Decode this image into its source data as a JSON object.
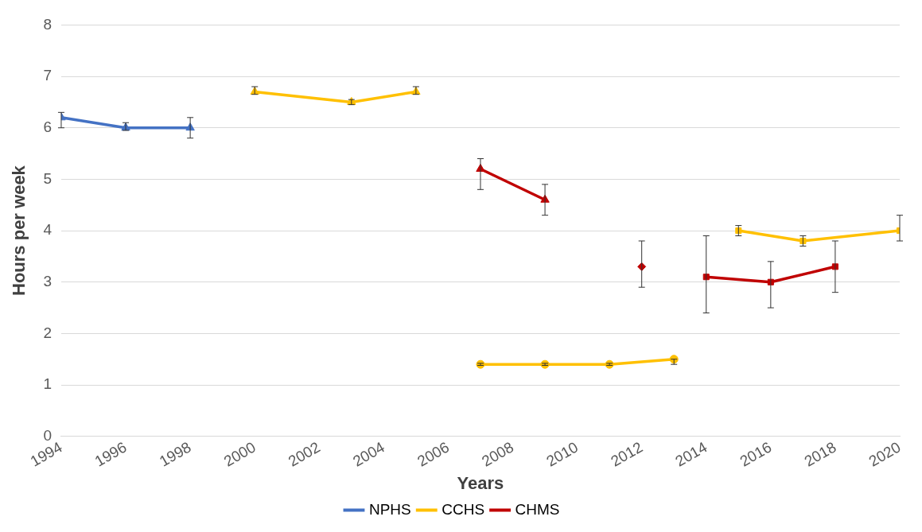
{
  "chart_data": {
    "type": "line",
    "xlabel": "Years",
    "ylabel": "Hours per week",
    "xlim": [
      1994,
      2020
    ],
    "xticks": [
      1994,
      1996,
      1998,
      2000,
      2002,
      2004,
      2006,
      2008,
      2010,
      2012,
      2014,
      2016,
      2018,
      2020
    ],
    "ylim": [
      0,
      8
    ],
    "yticks": [
      0,
      1,
      2,
      3,
      4,
      5,
      6,
      7,
      8
    ],
    "grid": "y",
    "legend": "bottom",
    "series": [
      {
        "name": "NPHS",
        "color": "#4472c4",
        "marker": "triangle",
        "x": [
          1994,
          1996,
          1998
        ],
        "values": [
          6.2,
          6.0,
          6.0
        ],
        "errors": [
          [
            6.0,
            6.3
          ],
          [
            5.95,
            6.1
          ],
          [
            5.8,
            6.2
          ]
        ]
      },
      {
        "name": "CCHS",
        "color": "#ffc000",
        "marker": "triangle",
        "x": [
          2000,
          2003,
          2005
        ],
        "values": [
          6.7,
          6.5,
          6.7
        ],
        "errors": [
          [
            6.65,
            6.8
          ],
          [
            6.45,
            6.55
          ],
          [
            6.65,
            6.8
          ]
        ]
      },
      {
        "name": "CHMS",
        "color": "#c00000",
        "marker": "triangle",
        "x": [
          2007,
          2009
        ],
        "values": [
          5.2,
          4.6
        ],
        "errors": [
          [
            4.8,
            5.4
          ],
          [
            4.3,
            4.9
          ]
        ]
      },
      {
        "color": "#c00000",
        "marker": "diamond",
        "x": [
          2012
        ],
        "values": [
          3.3
        ],
        "errors": [
          [
            2.9,
            3.8
          ]
        ]
      },
      {
        "color": "#ffc000",
        "marker": "circle",
        "x": [
          2007,
          2009,
          2011,
          2013
        ],
        "values": [
          1.4,
          1.4,
          1.4,
          1.5
        ],
        "errors": [
          [
            1.38,
            1.42
          ],
          [
            1.38,
            1.42
          ],
          [
            1.38,
            1.42
          ],
          [
            1.4,
            1.5
          ]
        ]
      },
      {
        "color": "#ffc000",
        "marker": "square",
        "x": [
          2015,
          2017,
          2020
        ],
        "values": [
          4.0,
          3.8,
          4.0
        ],
        "errors": [
          [
            3.9,
            4.1
          ],
          [
            3.7,
            3.9
          ],
          [
            3.8,
            4.3
          ]
        ]
      },
      {
        "color": "#c00000",
        "marker": "square",
        "x": [
          2014,
          2016,
          2018
        ],
        "values": [
          3.1,
          3.0,
          3.3
        ],
        "errors": [
          [
            2.4,
            3.9
          ],
          [
            2.5,
            3.4
          ],
          [
            2.8,
            3.8
          ]
        ]
      }
    ]
  }
}
